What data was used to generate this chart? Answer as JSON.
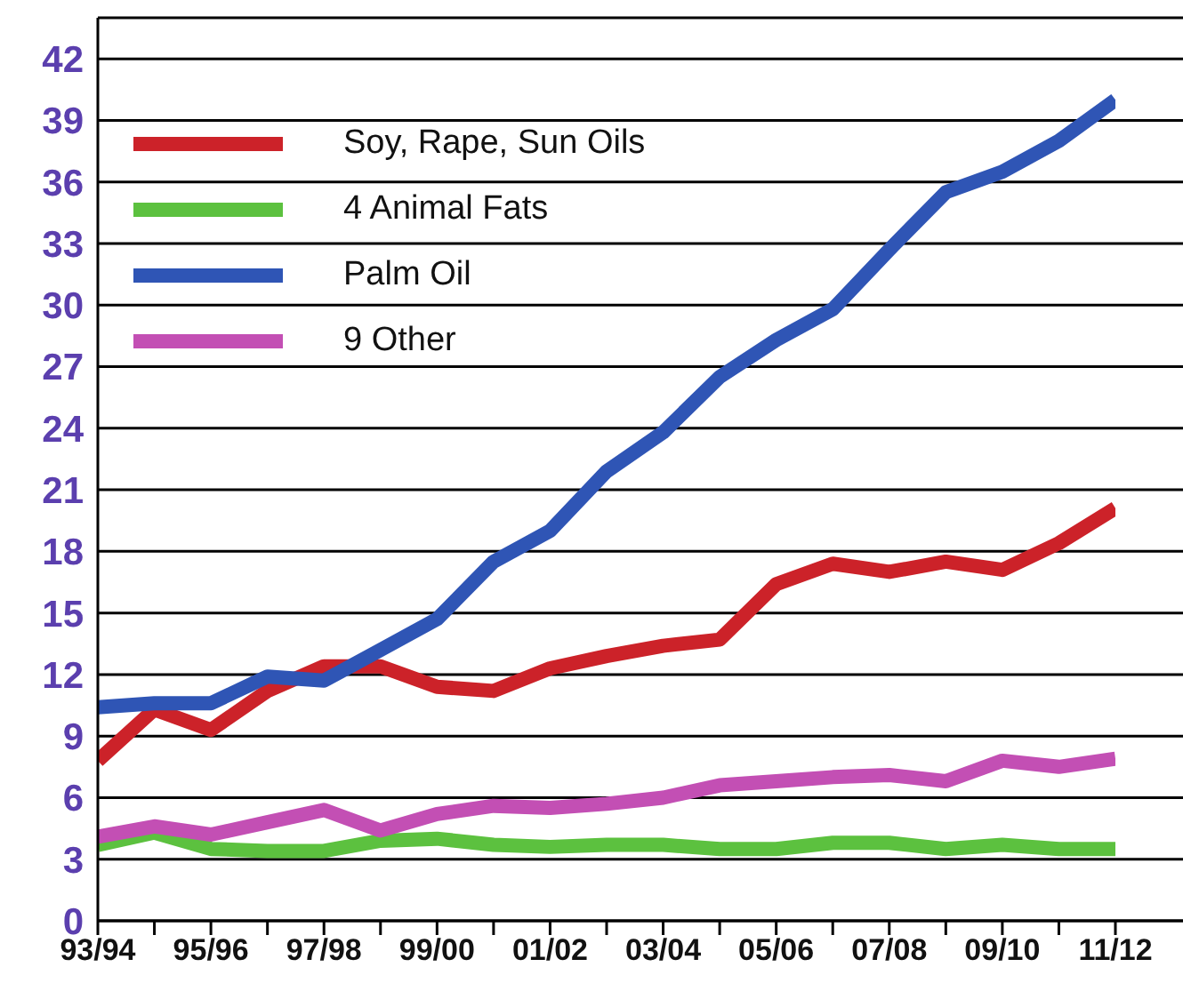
{
  "chart_data": {
    "type": "line",
    "categories": [
      "93/94",
      null,
      "95/96",
      null,
      "97/98",
      null,
      "99/00",
      null,
      "01/02",
      null,
      "03/04",
      null,
      "05/06",
      null,
      "07/08",
      null,
      "09/10",
      null,
      "11/12"
    ],
    "series": [
      {
        "name": "Soy, Rape, Sun Oils",
        "color": "#cc2229",
        "values": [
          7.8,
          10.3,
          9.3,
          11.2,
          12.4,
          12.4,
          11.4,
          11.2,
          12.3,
          12.9,
          13.4,
          13.7,
          16.4,
          17.4,
          17.0,
          17.5,
          17.1,
          18.4,
          20.1
        ]
      },
      {
        "name": "4 Animal Fats",
        "color": "#5cc13f",
        "values": [
          3.7,
          4.3,
          3.5,
          3.4,
          3.4,
          3.9,
          4.0,
          3.7,
          3.6,
          3.7,
          3.7,
          3.5,
          3.5,
          3.8,
          3.8,
          3.5,
          3.7,
          3.5,
          3.5
        ]
      },
      {
        "name": "Palm Oil",
        "color": "#2f55b5",
        "values": [
          10.4,
          10.6,
          10.6,
          11.9,
          11.7,
          13.2,
          14.7,
          17.5,
          19.0,
          21.9,
          23.8,
          26.5,
          28.3,
          29.8,
          32.7,
          35.5,
          36.5,
          38.0,
          40.0
        ]
      },
      {
        "name": "9 Other",
        "color": "#c34fb4",
        "values": [
          4.1,
          4.6,
          4.2,
          4.8,
          5.4,
          4.4,
          5.2,
          5.6,
          5.5,
          5.7,
          6.0,
          6.6,
          6.8,
          7.0,
          7.1,
          6.8,
          7.8,
          7.5,
          7.9
        ]
      }
    ],
    "ylim": [
      0,
      44
    ],
    "yticks": [
      0,
      3,
      6,
      9,
      12,
      15,
      18,
      21,
      24,
      27,
      30,
      33,
      36,
      39,
      42
    ],
    "grid": "y",
    "legend": "top left",
    "marker": "none",
    "line_style": "solid"
  }
}
